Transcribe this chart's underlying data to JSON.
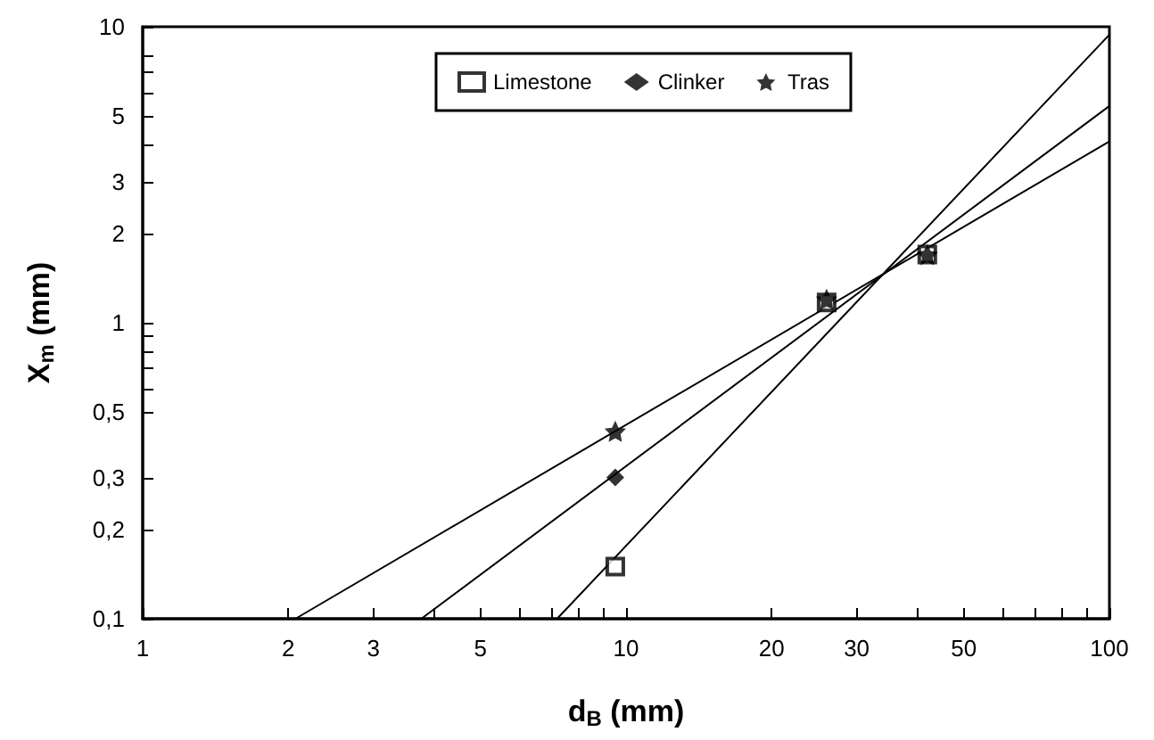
{
  "chart_data": {
    "type": "scatter",
    "xlabel": "d$_{B}$ (mm)",
    "ylabel": "X$_{m}$ (mm)",
    "log": "xy",
    "grid": false,
    "legend": "top right",
    "xlim": [
      1,
      100
    ],
    "ylim": [
      0.1,
      10
    ],
    "xticks": [
      1,
      2,
      3,
      {
        "value": 4,
        "label": null
      },
      5,
      {
        "value": 6,
        "label": null
      },
      {
        "value": 7,
        "label": null
      },
      {
        "value": 8,
        "label": null
      },
      {
        "value": 9,
        "label": null
      },
      10,
      20,
      30,
      {
        "value": 40,
        "label": null
      },
      50,
      {
        "value": 60,
        "label": null
      },
      {
        "value": 70,
        "label": null
      },
      {
        "value": 80,
        "label": null
      },
      {
        "value": 90,
        "label": null
      },
      100
    ],
    "yticks": [
      {
        "value": 0.1,
        "label": "0,1"
      },
      {
        "value": 0.2,
        "label": "0,2"
      },
      {
        "value": 0.3,
        "label": "0,3"
      },
      {
        "value": 0.5,
        "label": "0,5"
      },
      {
        "value": 0.6,
        "label": null
      },
      {
        "value": 0.7,
        "label": null
      },
      {
        "value": 0.8,
        "label": null
      },
      {
        "value": 0.9,
        "label": null
      },
      1,
      2,
      3,
      {
        "value": 4,
        "label": null
      },
      5,
      {
        "value": 6,
        "label": null
      },
      {
        "value": 7,
        "label": null
      },
      {
        "value": 8,
        "label": null
      },
      10
    ],
    "series": [
      {
        "name": "Limestone",
        "color": "#000000",
        "marker": "square",
        "x": [
          9.5,
          26,
          42
        ],
        "values": [
          0.15,
          1.17,
          1.7
        ]
      },
      {
        "name": "Clinker",
        "color": "#000000",
        "marker": "diamond",
        "x": [
          9.5
        ],
        "values": [
          0.3
        ]
      },
      {
        "name": "Tras",
        "color": "#000000",
        "marker": "star",
        "x": [
          9.5,
          26,
          42
        ],
        "values": [
          0.43,
          1.2,
          1.7
        ]
      },
      {
        "type": "line",
        "color": "#000000",
        "marker": "none",
        "line_style": "solid",
        "x": [
          7.2,
          100
        ],
        "values": [
          0.1,
          9.4
        ]
      },
      {
        "type": "line",
        "color": "#000000",
        "marker": "none",
        "line_style": "solid",
        "x": [
          3.77,
          100
        ],
        "values": [
          0.1,
          5.4
        ]
      },
      {
        "type": "line",
        "color": "#000000",
        "marker": "none",
        "line_style": "solid",
        "x": [
          2.07,
          100
        ],
        "values": [
          0.1,
          4.1
        ]
      }
    ]
  }
}
